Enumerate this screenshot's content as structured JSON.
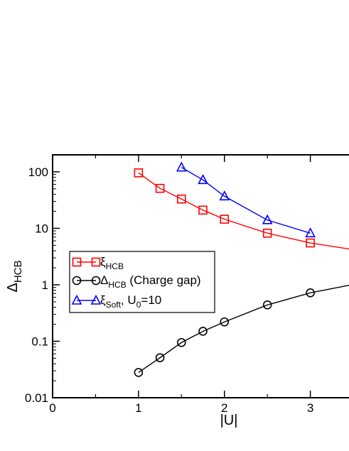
{
  "chart_data": {
    "type": "line",
    "xlabel": "|U|",
    "ylabel_main": "Δ",
    "ylabel_sub": "HCB",
    "yscale": "log",
    "xlim": [
      0,
      3.45
    ],
    "ylim": [
      0.01,
      200
    ],
    "x_ticks": [
      0,
      1,
      2,
      3
    ],
    "x_tick_labels": [
      "0",
      "1",
      "2",
      "3"
    ],
    "y_ticks": [
      0.01,
      0.1,
      1,
      10,
      100
    ],
    "y_tick_labels": [
      "0.01",
      "0.1",
      "1",
      "10",
      "100"
    ],
    "grid": false,
    "legend_position": "center-left",
    "series": [
      {
        "name": "ξ",
        "name_sub": "HCB",
        "name_suffix": "",
        "color": "#ff0000",
        "marker": "square",
        "x": [
          1.0,
          1.25,
          1.5,
          1.75,
          2.0,
          2.5,
          3.0
        ],
        "y": [
          96,
          51,
          33,
          21,
          14.5,
          8.2,
          5.5
        ],
        "line_extension": [
          [
            3.0,
            5.5
          ],
          [
            3.45,
            4.3
          ]
        ]
      },
      {
        "name": "Δ",
        "name_sub": "HCB",
        "name_suffix": " (Charge gap)",
        "color": "#000000",
        "marker": "circle",
        "x": [
          1.0,
          1.25,
          1.5,
          1.75,
          2.0,
          2.5,
          3.0
        ],
        "y": [
          0.028,
          0.051,
          0.095,
          0.15,
          0.22,
          0.44,
          0.72
        ],
        "line_extension": [
          [
            3.0,
            0.72
          ],
          [
            3.45,
            0.98
          ]
        ]
      },
      {
        "name": "ξ",
        "name_sub": "Soft",
        "name_suffix": ", U",
        "name_suffix_sub": "0",
        "name_suffix_tail": "=10",
        "color": "#0000ff",
        "marker": "triangle",
        "x": [
          1.5,
          1.75,
          2.0,
          2.5,
          3.0
        ],
        "y": [
          120,
          72,
          37,
          14,
          8.2
        ]
      }
    ]
  }
}
